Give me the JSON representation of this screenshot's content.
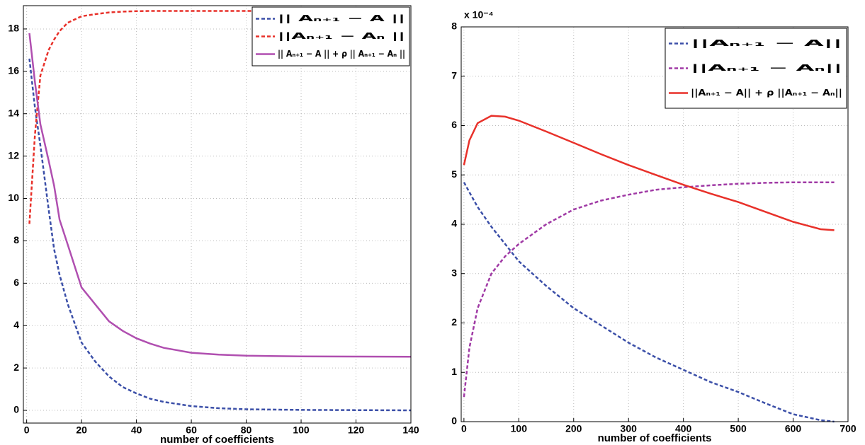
{
  "chart_data": [
    {
      "type": "line",
      "xlabel": "number of coefficients",
      "x": [
        1,
        3,
        5,
        8,
        10,
        12,
        15,
        20,
        25,
        30,
        35,
        40,
        45,
        50,
        60,
        70,
        80,
        100,
        120,
        140
      ],
      "xlim": [
        -1.2,
        140
      ],
      "ylim": [
        -0.6,
        19.1
      ],
      "xticks": [
        0,
        20,
        40,
        60,
        80,
        100,
        120,
        140
      ],
      "yticks": [
        0,
        2,
        4,
        6,
        8,
        10,
        12,
        14,
        16,
        18
      ],
      "grid": true,
      "legend": "upper right",
      "series": [
        {
          "name": "|| Aₙ₊₁ − A ||",
          "color": "#3b4fa8",
          "linestyle": "dashed",
          "values": [
            16.6,
            14.3,
            12.5,
            9.5,
            7.6,
            6.4,
            5.0,
            3.2,
            2.3,
            1.6,
            1.1,
            0.8,
            0.55,
            0.4,
            0.2,
            0.1,
            0.05,
            0.02,
            0.01,
            0
          ]
        },
        {
          "name": "||Aₙ₊₁ − Aₙ ||",
          "color": "#e8312a",
          "linestyle": "dashed",
          "values": [
            8.8,
            13,
            15.8,
            17.0,
            17.5,
            17.9,
            18.3,
            18.6,
            18.7,
            18.78,
            18.82,
            18.84,
            18.85,
            18.85,
            18.85,
            18.85,
            18.85,
            18.85,
            18.85,
            18.85
          ]
        },
        {
          "name": "|| Aₙ₊₁ − A || + ρ || Aₙ₊₁ − Aₙ ||",
          "color": "#b04fb0",
          "linestyle": "solid",
          "values": [
            17.8,
            15.5,
            13.5,
            11.8,
            10.6,
            9.0,
            7.8,
            5.8,
            5.0,
            4.2,
            3.75,
            3.4,
            3.15,
            2.95,
            2.72,
            2.63,
            2.58,
            2.55,
            2.54,
            2.53
          ]
        }
      ]
    },
    {
      "type": "line",
      "xlabel": "number of coefficients",
      "y_multiplier": "x 10⁻⁴",
      "x": [
        0,
        10,
        25,
        50,
        75,
        100,
        150,
        200,
        250,
        300,
        350,
        400,
        450,
        500,
        550,
        600,
        650,
        675
      ],
      "xlim": [
        -5,
        700
      ],
      "ylim": [
        0,
        8
      ],
      "xticks": [
        0,
        100,
        200,
        300,
        400,
        500,
        600,
        700
      ],
      "yticks": [
        0,
        1,
        2,
        3,
        4,
        5,
        6,
        7,
        8
      ],
      "grid": true,
      "legend": "upper right",
      "series": [
        {
          "name": "||Aₙ₊₁ − A||",
          "color": "#3b4fa8",
          "linestyle": "dashed",
          "values": [
            4.85,
            4.65,
            4.35,
            3.95,
            3.6,
            3.25,
            2.75,
            2.3,
            1.95,
            1.6,
            1.3,
            1.05,
            0.8,
            0.6,
            0.37,
            0.15,
            0.03,
            0
          ]
        },
        {
          "name": "||Aₙ₊₁ − Aₙ||",
          "color": "#a03aa5",
          "linestyle": "dashed",
          "values": [
            0.5,
            1.5,
            2.3,
            3.0,
            3.35,
            3.6,
            4.0,
            4.3,
            4.48,
            4.6,
            4.7,
            4.75,
            4.79,
            4.82,
            4.84,
            4.85,
            4.85,
            4.85
          ]
        },
        {
          "name": "||Aₙ₊₁ − A|| + ρ ||Aₙ₊₁ − Aₙ||",
          "color": "#e8312a",
          "linestyle": "solid",
          "values": [
            5.2,
            5.7,
            6.05,
            6.2,
            6.18,
            6.1,
            5.88,
            5.65,
            5.42,
            5.2,
            5.0,
            4.8,
            4.62,
            4.45,
            4.25,
            4.05,
            3.9,
            3.88
          ]
        }
      ]
    }
  ]
}
